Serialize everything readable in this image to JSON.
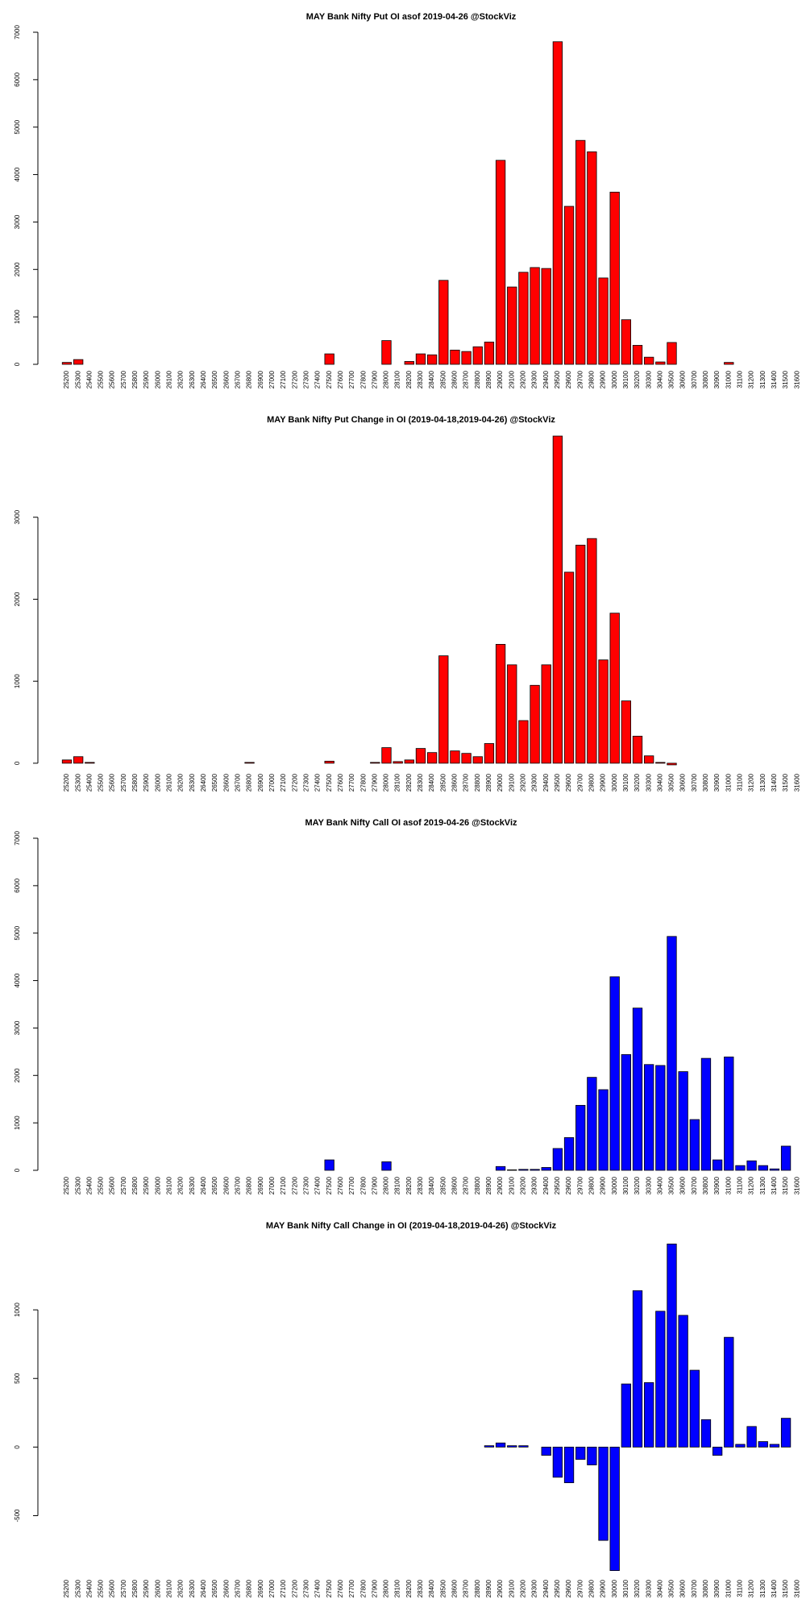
{
  "chart_data": [
    {
      "type": "bar",
      "title": "MAY Bank Nifty Put OI asof 2019-04-26 @StockViz",
      "color": "#ff0000",
      "categories": [
        "25200",
        "25300",
        "25400",
        "25500",
        "25600",
        "25700",
        "25800",
        "25900",
        "26000",
        "26100",
        "26200",
        "26300",
        "26400",
        "26500",
        "26600",
        "26700",
        "26800",
        "26900",
        "27000",
        "27100",
        "27200",
        "27300",
        "27400",
        "27500",
        "27600",
        "27700",
        "27800",
        "27900",
        "28000",
        "28100",
        "28200",
        "28300",
        "28400",
        "28500",
        "28600",
        "28700",
        "28800",
        "28900",
        "29000",
        "29100",
        "29200",
        "29300",
        "29400",
        "29500",
        "29600",
        "29700",
        "29800",
        "29900",
        "30000",
        "30100",
        "30200",
        "30300",
        "30400",
        "30500",
        "30600",
        "30700",
        "30800",
        "30900",
        "31000",
        "31100",
        "31200",
        "31300",
        "31400",
        "31500",
        "31600"
      ],
      "values": [
        40,
        100,
        0,
        0,
        0,
        0,
        0,
        0,
        0,
        0,
        0,
        0,
        0,
        0,
        0,
        0,
        0,
        0,
        0,
        0,
        0,
        0,
        0,
        220,
        0,
        0,
        0,
        0,
        500,
        0,
        60,
        220,
        200,
        1770,
        300,
        270,
        370,
        470,
        4300,
        1630,
        1940,
        2040,
        2020,
        6800,
        3330,
        4720,
        4480,
        1820,
        3630,
        940,
        400,
        150,
        50,
        460,
        0,
        0,
        0,
        0,
        40,
        0,
        0,
        0,
        0,
        0,
        0
      ],
      "ylim": [
        0,
        7000
      ],
      "yticks": [
        0,
        1000,
        2000,
        3000,
        4000,
        5000,
        6000,
        7000
      ]
    },
    {
      "type": "bar",
      "title": "MAY Bank Nifty Put Change in OI (2019-04-18,2019-04-26) @StockViz",
      "color": "#ff0000",
      "categories": [
        "25200",
        "25300",
        "25400",
        "25500",
        "25600",
        "25700",
        "25800",
        "25900",
        "26000",
        "26100",
        "26200",
        "26300",
        "26400",
        "26500",
        "26600",
        "26700",
        "26800",
        "26900",
        "27000",
        "27100",
        "27200",
        "27300",
        "27400",
        "27500",
        "27600",
        "27700",
        "27800",
        "27900",
        "28000",
        "28100",
        "28200",
        "28300",
        "28400",
        "28500",
        "28600",
        "28700",
        "28800",
        "28900",
        "29000",
        "29100",
        "29200",
        "29300",
        "29400",
        "29500",
        "29600",
        "29700",
        "29800",
        "29900",
        "30000",
        "30100",
        "30200",
        "30300",
        "30400",
        "30500",
        "30600",
        "30700",
        "30800",
        "30900",
        "31000",
        "31100",
        "31200",
        "31300",
        "31400",
        "31500",
        "31600"
      ],
      "values": [
        40,
        80,
        10,
        0,
        0,
        0,
        0,
        0,
        0,
        0,
        0,
        0,
        0,
        0,
        0,
        0,
        10,
        0,
        0,
        0,
        0,
        0,
        0,
        25,
        0,
        0,
        0,
        10,
        190,
        20,
        40,
        180,
        130,
        1310,
        150,
        120,
        80,
        240,
        1450,
        1200,
        520,
        950,
        1200,
        3990,
        2330,
        2660,
        2740,
        1260,
        1830,
        760,
        330,
        90,
        10,
        -20,
        0,
        0,
        0,
        0,
        0,
        0,
        0,
        0,
        0,
        0,
        0
      ],
      "ylim": [
        -50,
        4000
      ],
      "yticks": [
        0,
        1000,
        2000,
        3000
      ]
    },
    {
      "type": "bar",
      "title": "MAY Bank Nifty Call OI asof 2019-04-26 @StockViz",
      "color": "#0000ff",
      "categories": [
        "25200",
        "25300",
        "25400",
        "25500",
        "25600",
        "25700",
        "25800",
        "25900",
        "26000",
        "26100",
        "26200",
        "26300",
        "26400",
        "26500",
        "26600",
        "26700",
        "26800",
        "26900",
        "27000",
        "27100",
        "27200",
        "27300",
        "27400",
        "27500",
        "27600",
        "27700",
        "27800",
        "27900",
        "28000",
        "28100",
        "28200",
        "28300",
        "28400",
        "28500",
        "28600",
        "28700",
        "28800",
        "28900",
        "29000",
        "29100",
        "29200",
        "29300",
        "29400",
        "29500",
        "29600",
        "29700",
        "29800",
        "29900",
        "30000",
        "30100",
        "30200",
        "30300",
        "30400",
        "30500",
        "30600",
        "30700",
        "30800",
        "30900",
        "31000",
        "31100",
        "31200",
        "31300",
        "31400",
        "31500",
        "31600"
      ],
      "values": [
        0,
        0,
        0,
        0,
        0,
        0,
        0,
        0,
        0,
        0,
        0,
        0,
        0,
        0,
        0,
        0,
        0,
        0,
        0,
        0,
        0,
        0,
        0,
        220,
        0,
        0,
        0,
        0,
        180,
        0,
        0,
        0,
        0,
        0,
        0,
        0,
        0,
        0,
        80,
        10,
        20,
        20,
        60,
        460,
        690,
        1370,
        1960,
        1700,
        4080,
        2440,
        3420,
        2230,
        2210,
        4930,
        2080,
        1070,
        2360,
        220,
        2390,
        100,
        200,
        100,
        30,
        510,
        0
      ],
      "ylim": [
        0,
        7000
      ],
      "yticks": [
        0,
        1000,
        2000,
        3000,
        4000,
        5000,
        6000,
        7000
      ]
    },
    {
      "type": "bar",
      "title": "MAY Bank Nifty Call Change in OI (2019-04-18,2019-04-26) @StockViz",
      "color": "#0000ff",
      "categories": [
        "25200",
        "25300",
        "25400",
        "25500",
        "25600",
        "25700",
        "25800",
        "25900",
        "26000",
        "26100",
        "26200",
        "26300",
        "26400",
        "26500",
        "26600",
        "26700",
        "26800",
        "26900",
        "27000",
        "27100",
        "27200",
        "27300",
        "27400",
        "27500",
        "27600",
        "27700",
        "27800",
        "27900",
        "28000",
        "28100",
        "28200",
        "28300",
        "28400",
        "28500",
        "28600",
        "28700",
        "28800",
        "28900",
        "29000",
        "29100",
        "29200",
        "29300",
        "29400",
        "29500",
        "29600",
        "29700",
        "29800",
        "29900",
        "30000",
        "30100",
        "30200",
        "30300",
        "30400",
        "30500",
        "30600",
        "30700",
        "30800",
        "30900",
        "31000",
        "31100",
        "31200",
        "31300",
        "31400",
        "31500",
        "31600"
      ],
      "values": [
        0,
        0,
        0,
        0,
        0,
        0,
        0,
        0,
        0,
        0,
        0,
        0,
        0,
        0,
        0,
        0,
        0,
        0,
        0,
        0,
        0,
        0,
        0,
        0,
        0,
        0,
        0,
        0,
        0,
        0,
        0,
        0,
        0,
        0,
        0,
        0,
        0,
        10,
        30,
        10,
        10,
        0,
        -60,
        -220,
        -260,
        -90,
        -130,
        -680,
        -900,
        460,
        1140,
        470,
        990,
        1480,
        960,
        560,
        200,
        -60,
        800,
        20,
        150,
        40,
        20,
        210,
        0
      ],
      "ylim": [
        -920,
        1500
      ],
      "yticks": [
        -500,
        0,
        500,
        1000
      ]
    }
  ]
}
